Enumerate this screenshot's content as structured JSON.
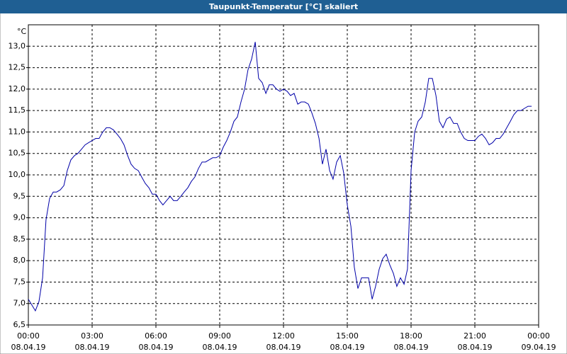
{
  "chart_data": {
    "type": "line",
    "title": "Taupunkt-Temperatur [°C] skaliert",
    "y_label": "°C",
    "x": [
      0,
      0.33,
      0.5,
      0.67,
      0.83,
      1,
      1.17,
      1.33,
      1.5,
      1.67,
      1.83,
      2,
      2.17,
      2.33,
      2.5,
      2.67,
      2.83,
      3,
      3.17,
      3.33,
      3.5,
      3.67,
      3.83,
      4,
      4.17,
      4.33,
      4.5,
      4.67,
      4.83,
      5,
      5.17,
      5.33,
      5.5,
      5.67,
      5.83,
      6,
      6.17,
      6.33,
      6.5,
      6.67,
      6.83,
      7,
      7.17,
      7.33,
      7.5,
      7.67,
      7.83,
      8,
      8.17,
      8.33,
      8.5,
      8.67,
      8.83,
      9,
      9.17,
      9.33,
      9.5,
      9.67,
      9.83,
      10,
      10.17,
      10.33,
      10.5,
      10.67,
      10.83,
      11,
      11.17,
      11.33,
      11.5,
      11.67,
      11.83,
      12,
      12.17,
      12.33,
      12.5,
      12.67,
      12.83,
      13,
      13.17,
      13.33,
      13.5,
      13.67,
      13.83,
      14,
      14.17,
      14.33,
      14.5,
      14.67,
      14.83,
      15,
      15.17,
      15.33,
      15.5,
      15.67,
      15.83,
      16,
      16.17,
      16.33,
      16.5,
      16.67,
      16.83,
      17,
      17.17,
      17.33,
      17.5,
      17.67,
      17.83,
      18,
      18.17,
      18.33,
      18.5,
      18.67,
      18.83,
      19,
      19.17,
      19.33,
      19.5,
      19.67,
      19.83,
      20,
      20.17,
      20.33,
      20.5,
      20.67,
      20.83,
      21,
      21.17,
      21.33,
      21.5,
      21.67,
      21.83,
      22,
      22.17,
      22.33,
      22.5,
      22.67,
      22.83,
      23,
      23.17,
      23.33,
      23.5,
      23.67
    ],
    "series": [
      {
        "name": "Taupunkt",
        "color": "#0000a8",
        "values": [
          7.1,
          6.83,
          7.05,
          7.6,
          8.95,
          9.45,
          9.6,
          9.6,
          9.65,
          9.75,
          10.1,
          10.35,
          10.45,
          10.5,
          10.6,
          10.7,
          10.75,
          10.8,
          10.85,
          10.85,
          11.0,
          11.1,
          11.1,
          11.05,
          10.95,
          10.85,
          10.7,
          10.45,
          10.25,
          10.15,
          10.1,
          9.95,
          9.8,
          9.7,
          9.55,
          9.55,
          9.4,
          9.3,
          9.4,
          9.5,
          9.4,
          9.4,
          9.5,
          9.6,
          9.7,
          9.85,
          9.95,
          10.15,
          10.3,
          10.3,
          10.35,
          10.4,
          10.4,
          10.45,
          10.65,
          10.8,
          11.0,
          11.25,
          11.35,
          11.7,
          12.0,
          12.45,
          12.7,
          13.1,
          12.25,
          12.15,
          11.9,
          12.1,
          12.1,
          12.0,
          11.95,
          12.0,
          11.95,
          11.85,
          11.9,
          11.65,
          11.7,
          11.7,
          11.65,
          11.45,
          11.2,
          10.85,
          10.25,
          10.6,
          10.1,
          9.9,
          10.3,
          10.45,
          10.05,
          9.3,
          8.8,
          7.85,
          7.35,
          7.6,
          7.6,
          7.6,
          7.1,
          7.4,
          7.8,
          8.05,
          8.15,
          7.9,
          7.7,
          7.4,
          7.6,
          7.45,
          7.8,
          10.1,
          11.0,
          11.25,
          11.35,
          11.7,
          12.25,
          12.25,
          11.85,
          11.25,
          11.1,
          11.3,
          11.35,
          11.2,
          11.2,
          11.0,
          10.85,
          10.8,
          10.8,
          10.8,
          10.9,
          10.95,
          10.85,
          10.7,
          10.75,
          10.85,
          10.85,
          10.95,
          11.1,
          11.25,
          11.4,
          11.5,
          11.5,
          11.55,
          11.6,
          11.6
        ]
      }
    ],
    "xlim": [
      0,
      24
    ],
    "xticks": [
      {
        "value": 0,
        "label": "00:00"
      },
      {
        "value": 3,
        "label": "03:00"
      },
      {
        "value": 6,
        "label": "06:00"
      },
      {
        "value": 9,
        "label": "09:00"
      },
      {
        "value": 12,
        "label": "12:00"
      },
      {
        "value": 15,
        "label": "15:00"
      },
      {
        "value": 18,
        "label": "18:00"
      },
      {
        "value": 21,
        "label": "21:00"
      },
      {
        "value": 24,
        "label": "00:00"
      }
    ],
    "xtick_dates": [
      "08.04.19",
      "08.04.19",
      "08.04.19",
      "08.04.19",
      "08.04.19",
      "08.04.19",
      "08.04.19",
      "08.04.19",
      "09.04.19"
    ],
    "ylim": [
      6.5,
      13.5
    ],
    "yticks": [
      {
        "value": 6.5,
        "label": "6,5"
      },
      {
        "value": 7,
        "label": "7,0"
      },
      {
        "value": 7.5,
        "label": "7,5"
      },
      {
        "value": 8,
        "label": "8,0"
      },
      {
        "value": 8.5,
        "label": "8,5"
      },
      {
        "value": 9,
        "label": "9,0"
      },
      {
        "value": 9.5,
        "label": "9,5"
      },
      {
        "value": 10,
        "label": "10,0"
      },
      {
        "value": 10.5,
        "label": "10,5"
      },
      {
        "value": 11,
        "label": "11,0"
      },
      {
        "value": 11.5,
        "label": "11,5"
      },
      {
        "value": 12,
        "label": "12,0"
      },
      {
        "value": 12.5,
        "label": "12,5"
      },
      {
        "value": 13,
        "label": "13,0"
      }
    ],
    "grid": true
  }
}
